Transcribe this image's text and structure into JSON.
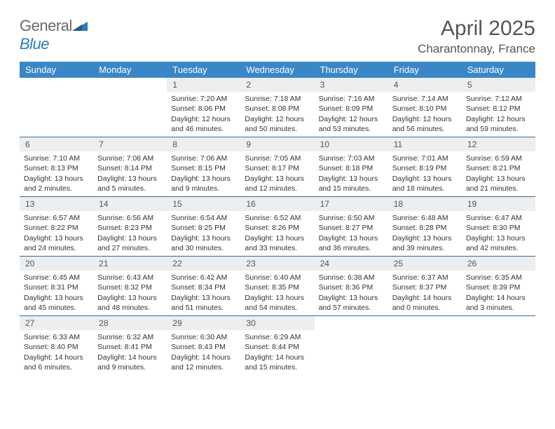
{
  "logo": {
    "text_general": "General",
    "text_blue": "Blue"
  },
  "title": "April 2025",
  "location": "Charantonnay, France",
  "colors": {
    "header_bg": "#3a87c7",
    "header_text": "#ffffff",
    "daynum_bg": "#eceeef",
    "week_border": "#3a6a95",
    "body_text": "#333333",
    "title_text": "#555555"
  },
  "weekdays": [
    "Sunday",
    "Monday",
    "Tuesday",
    "Wednesday",
    "Thursday",
    "Friday",
    "Saturday"
  ],
  "weeks": [
    [
      null,
      null,
      {
        "n": "1",
        "sunrise": "Sunrise: 7:20 AM",
        "sunset": "Sunset: 8:06 PM",
        "daylight": "Daylight: 12 hours and 46 minutes."
      },
      {
        "n": "2",
        "sunrise": "Sunrise: 7:18 AM",
        "sunset": "Sunset: 8:08 PM",
        "daylight": "Daylight: 12 hours and 50 minutes."
      },
      {
        "n": "3",
        "sunrise": "Sunrise: 7:16 AM",
        "sunset": "Sunset: 8:09 PM",
        "daylight": "Daylight: 12 hours and 53 minutes."
      },
      {
        "n": "4",
        "sunrise": "Sunrise: 7:14 AM",
        "sunset": "Sunset: 8:10 PM",
        "daylight": "Daylight: 12 hours and 56 minutes."
      },
      {
        "n": "5",
        "sunrise": "Sunrise: 7:12 AM",
        "sunset": "Sunset: 8:12 PM",
        "daylight": "Daylight: 12 hours and 59 minutes."
      }
    ],
    [
      {
        "n": "6",
        "sunrise": "Sunrise: 7:10 AM",
        "sunset": "Sunset: 8:13 PM",
        "daylight": "Daylight: 13 hours and 2 minutes."
      },
      {
        "n": "7",
        "sunrise": "Sunrise: 7:08 AM",
        "sunset": "Sunset: 8:14 PM",
        "daylight": "Daylight: 13 hours and 5 minutes."
      },
      {
        "n": "8",
        "sunrise": "Sunrise: 7:06 AM",
        "sunset": "Sunset: 8:15 PM",
        "daylight": "Daylight: 13 hours and 9 minutes."
      },
      {
        "n": "9",
        "sunrise": "Sunrise: 7:05 AM",
        "sunset": "Sunset: 8:17 PM",
        "daylight": "Daylight: 13 hours and 12 minutes."
      },
      {
        "n": "10",
        "sunrise": "Sunrise: 7:03 AM",
        "sunset": "Sunset: 8:18 PM",
        "daylight": "Daylight: 13 hours and 15 minutes."
      },
      {
        "n": "11",
        "sunrise": "Sunrise: 7:01 AM",
        "sunset": "Sunset: 8:19 PM",
        "daylight": "Daylight: 13 hours and 18 minutes."
      },
      {
        "n": "12",
        "sunrise": "Sunrise: 6:59 AM",
        "sunset": "Sunset: 8:21 PM",
        "daylight": "Daylight: 13 hours and 21 minutes."
      }
    ],
    [
      {
        "n": "13",
        "sunrise": "Sunrise: 6:57 AM",
        "sunset": "Sunset: 8:22 PM",
        "daylight": "Daylight: 13 hours and 24 minutes."
      },
      {
        "n": "14",
        "sunrise": "Sunrise: 6:56 AM",
        "sunset": "Sunset: 8:23 PM",
        "daylight": "Daylight: 13 hours and 27 minutes."
      },
      {
        "n": "15",
        "sunrise": "Sunrise: 6:54 AM",
        "sunset": "Sunset: 8:25 PM",
        "daylight": "Daylight: 13 hours and 30 minutes."
      },
      {
        "n": "16",
        "sunrise": "Sunrise: 6:52 AM",
        "sunset": "Sunset: 8:26 PM",
        "daylight": "Daylight: 13 hours and 33 minutes."
      },
      {
        "n": "17",
        "sunrise": "Sunrise: 6:50 AM",
        "sunset": "Sunset: 8:27 PM",
        "daylight": "Daylight: 13 hours and 36 minutes."
      },
      {
        "n": "18",
        "sunrise": "Sunrise: 6:48 AM",
        "sunset": "Sunset: 8:28 PM",
        "daylight": "Daylight: 13 hours and 39 minutes."
      },
      {
        "n": "19",
        "sunrise": "Sunrise: 6:47 AM",
        "sunset": "Sunset: 8:30 PM",
        "daylight": "Daylight: 13 hours and 42 minutes."
      }
    ],
    [
      {
        "n": "20",
        "sunrise": "Sunrise: 6:45 AM",
        "sunset": "Sunset: 8:31 PM",
        "daylight": "Daylight: 13 hours and 45 minutes."
      },
      {
        "n": "21",
        "sunrise": "Sunrise: 6:43 AM",
        "sunset": "Sunset: 8:32 PM",
        "daylight": "Daylight: 13 hours and 48 minutes."
      },
      {
        "n": "22",
        "sunrise": "Sunrise: 6:42 AM",
        "sunset": "Sunset: 8:34 PM",
        "daylight": "Daylight: 13 hours and 51 minutes."
      },
      {
        "n": "23",
        "sunrise": "Sunrise: 6:40 AM",
        "sunset": "Sunset: 8:35 PM",
        "daylight": "Daylight: 13 hours and 54 minutes."
      },
      {
        "n": "24",
        "sunrise": "Sunrise: 6:38 AM",
        "sunset": "Sunset: 8:36 PM",
        "daylight": "Daylight: 13 hours and 57 minutes."
      },
      {
        "n": "25",
        "sunrise": "Sunrise: 6:37 AM",
        "sunset": "Sunset: 8:37 PM",
        "daylight": "Daylight: 14 hours and 0 minutes."
      },
      {
        "n": "26",
        "sunrise": "Sunrise: 6:35 AM",
        "sunset": "Sunset: 8:39 PM",
        "daylight": "Daylight: 14 hours and 3 minutes."
      }
    ],
    [
      {
        "n": "27",
        "sunrise": "Sunrise: 6:33 AM",
        "sunset": "Sunset: 8:40 PM",
        "daylight": "Daylight: 14 hours and 6 minutes."
      },
      {
        "n": "28",
        "sunrise": "Sunrise: 6:32 AM",
        "sunset": "Sunset: 8:41 PM",
        "daylight": "Daylight: 14 hours and 9 minutes."
      },
      {
        "n": "29",
        "sunrise": "Sunrise: 6:30 AM",
        "sunset": "Sunset: 8:43 PM",
        "daylight": "Daylight: 14 hours and 12 minutes."
      },
      {
        "n": "30",
        "sunrise": "Sunrise: 6:29 AM",
        "sunset": "Sunset: 8:44 PM",
        "daylight": "Daylight: 14 hours and 15 minutes."
      },
      null,
      null,
      null
    ]
  ]
}
